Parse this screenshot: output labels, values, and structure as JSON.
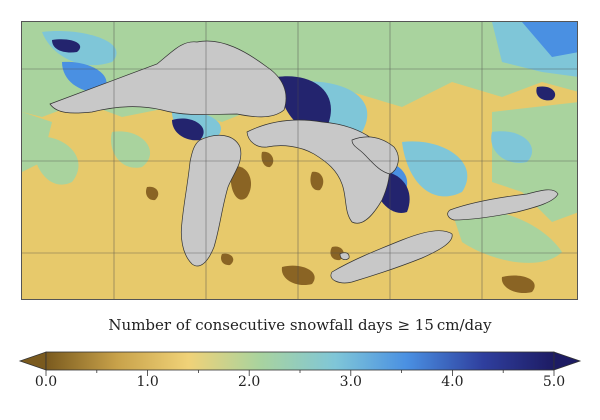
{
  "colorbar": {
    "title": "Number of consecutive snowfall days ≥ 15 cm/day",
    "range": [
      0.0,
      5.0
    ],
    "tick_labels": [
      "0.0",
      "1.0",
      "2.0",
      "3.0",
      "4.0",
      "5.0"
    ],
    "extend": "both",
    "colors": [
      "#7a5a1e",
      "#c8a24a",
      "#f0d278",
      "#a9d39e",
      "#7fc6d8",
      "#4a90e2",
      "#2f3f9e",
      "#1d1b63"
    ]
  },
  "map": {
    "lake_color": "#c8c8c8",
    "land_base_color": "#e7c96b",
    "region": "Great Lakes"
  }
}
